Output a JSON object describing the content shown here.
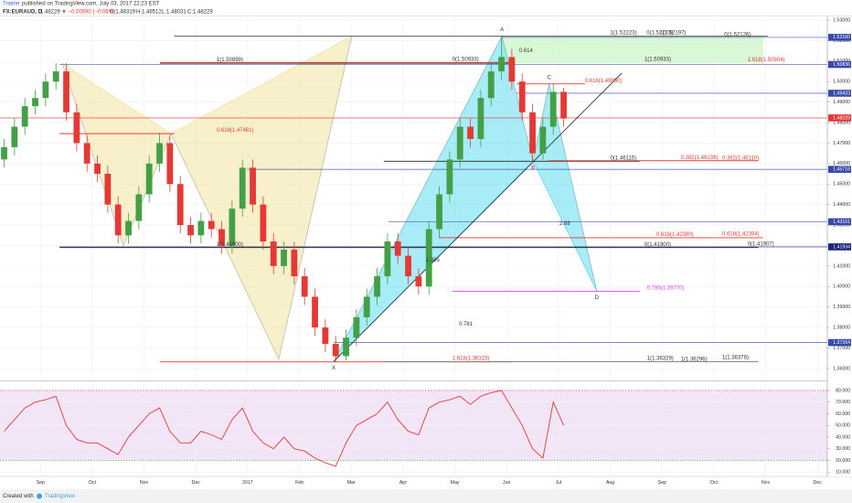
{
  "header": {
    "author": "Traime",
    "published": "published on TradingView.com, July 03, 2017 22:23 EST",
    "symbol": "FX:EURAUD, D",
    "last": "1.48229",
    "change": "▼ −0.00090 (−0.06%)",
    "open": "O:1.48319",
    "high": "H:1.48512",
    "low": "L:1.48031",
    "close": "C:1.48229"
  },
  "footer": {
    "created": "Created with",
    "brand": "TradingView"
  },
  "chart_data": [
    {
      "type": "candlestick",
      "x": [
        8.3,
        8.5,
        8.7,
        8.9,
        9.1,
        9.3,
        9.5,
        9.7,
        9.9,
        10.1,
        10.3,
        10.5,
        10.7,
        10.9,
        11.1,
        11.3,
        11.5,
        11.7,
        11.9,
        12.1,
        12.3,
        12.5,
        12.7,
        12.9,
        13.1,
        13.3,
        13.5,
        13.7,
        13.9,
        14.1,
        14.3,
        14.5,
        14.7,
        14.9,
        15.1,
        15.3,
        15.5,
        15.7,
        15.9,
        16.1,
        16.3,
        16.5,
        16.7,
        16.9,
        17.1,
        17.3,
        17.5,
        17.7,
        17.9,
        18.1,
        18.3,
        18.5,
        18.7,
        18.9,
        19.1
      ],
      "open": [
        1.462,
        1.468,
        1.478,
        1.488,
        1.492,
        1.5,
        1.505,
        1.485,
        1.47,
        1.46,
        1.455,
        1.44,
        1.425,
        1.432,
        1.445,
        1.46,
        1.47,
        1.45,
        1.43,
        1.425,
        1.432,
        1.428,
        1.42,
        1.438,
        1.458,
        1.44,
        1.422,
        1.41,
        1.418,
        1.405,
        1.395,
        1.38,
        1.372,
        1.366,
        1.375,
        1.385,
        1.395,
        1.405,
        1.422,
        1.415,
        1.405,
        1.4,
        1.428,
        1.445,
        1.462,
        1.478,
        1.472,
        1.492,
        1.505,
        1.512,
        1.5,
        1.485,
        1.465,
        1.478,
        1.495
      ],
      "high": [
        1.472,
        1.482,
        1.492,
        1.496,
        1.504,
        1.509,
        1.509,
        1.489,
        1.474,
        1.464,
        1.459,
        1.444,
        1.436,
        1.449,
        1.464,
        1.475,
        1.474,
        1.454,
        1.434,
        1.436,
        1.436,
        1.432,
        1.442,
        1.462,
        1.462,
        1.444,
        1.426,
        1.422,
        1.422,
        1.409,
        1.399,
        1.384,
        1.376,
        1.379,
        1.389,
        1.399,
        1.409,
        1.426,
        1.426,
        1.419,
        1.409,
        1.432,
        1.449,
        1.466,
        1.482,
        1.482,
        1.496,
        1.509,
        1.5222,
        1.516,
        1.504,
        1.489,
        1.482,
        1.4989,
        1.497
      ],
      "low": [
        1.458,
        1.464,
        1.474,
        1.484,
        1.488,
        1.496,
        1.481,
        1.466,
        1.456,
        1.451,
        1.436,
        1.421,
        1.421,
        1.428,
        1.441,
        1.456,
        1.446,
        1.426,
        1.421,
        1.421,
        1.424,
        1.416,
        1.416,
        1.434,
        1.436,
        1.418,
        1.406,
        1.406,
        1.401,
        1.391,
        1.376,
        1.368,
        1.3633,
        1.364,
        1.371,
        1.381,
        1.391,
        1.401,
        1.411,
        1.401,
        1.396,
        1.396,
        1.424,
        1.441,
        1.458,
        1.468,
        1.468,
        1.488,
        1.501,
        1.496,
        1.481,
        1.4612,
        1.462,
        1.474,
        1.478
      ],
      "close": [
        1.468,
        1.478,
        1.488,
        1.492,
        1.5,
        1.505,
        1.485,
        1.47,
        1.46,
        1.455,
        1.44,
        1.425,
        1.432,
        1.445,
        1.46,
        1.47,
        1.45,
        1.43,
        1.425,
        1.432,
        1.428,
        1.42,
        1.438,
        1.458,
        1.44,
        1.422,
        1.41,
        1.418,
        1.405,
        1.395,
        1.38,
        1.372,
        1.366,
        1.375,
        1.385,
        1.395,
        1.405,
        1.422,
        1.415,
        1.405,
        1.4,
        1.428,
        1.445,
        1.462,
        1.478,
        1.472,
        1.492,
        1.505,
        1.512,
        1.5,
        1.485,
        1.465,
        1.478,
        1.495,
        1.482
      ],
      "up_color": "#43a047",
      "down_color": "#e53935",
      "xlim": [
        8.22,
        24.19
      ],
      "ylim": [
        1.3546,
        1.5318
      ],
      "grid": true,
      "yticks": [
        {
          "value": 1.53,
          "label": "1.53000"
        },
        {
          "value": 1.52,
          "label": "1.52000"
        },
        {
          "value": 1.51,
          "label": "1.51000"
        },
        {
          "value": 1.5,
          "label": "1.50000"
        },
        {
          "value": 1.49,
          "label": "1.49000"
        },
        {
          "value": 1.48,
          "label": "1.48000"
        },
        {
          "value": 1.47,
          "label": "1.47000"
        },
        {
          "value": 1.46,
          "label": "1.46000"
        },
        {
          "value": 1.45,
          "label": "1.45000"
        },
        {
          "value": 1.44,
          "label": "1.44000"
        },
        {
          "value": 1.43,
          "label": "1.43000"
        },
        {
          "value": 1.42,
          "label": "1.42000"
        },
        {
          "value": 1.41,
          "label": "1.41000"
        },
        {
          "value": 1.4,
          "label": "1.40000"
        },
        {
          "value": 1.39,
          "label": "1.39000"
        },
        {
          "value": 1.38,
          "label": "1.38000"
        },
        {
          "value": 1.37,
          "label": "1.37000"
        },
        {
          "value": 1.36,
          "label": "1.36000"
        }
      ],
      "hlines": [
        {
          "value": 1.5216,
          "label": "1.52160",
          "from": 17.89,
          "color": "#3949ab"
        },
        {
          "value": 1.50836,
          "label": "1.50836",
          "from": 9.37,
          "color": "#3949ab"
        },
        {
          "value": 1.49433,
          "label": "1.49433",
          "from": 18.19,
          "color": "#3949ab"
        },
        {
          "value": 1.48229,
          "label": "1.48229",
          "from": 8.22,
          "color": "#e53935"
        },
        {
          "value": 1.45718,
          "label": "1.45718",
          "from": 12.99,
          "color": "#3949ab"
        },
        {
          "value": 1.43161,
          "label": "1.43161",
          "from": 15.72,
          "color": "#3949ab"
        },
        {
          "value": 1.41934,
          "label": "1.41934",
          "from": 9.37,
          "color": "#1a237e"
        },
        {
          "value": 1.37264,
          "label": "1.37264",
          "from": 14.66,
          "color": "#3949ab"
        }
      ],
      "fib_lines": [
        {
          "y": 1.52223,
          "x": [
            11.58,
            23.04
          ],
          "color": "#555555"
        },
        {
          "y": 1.50899,
          "x": [
            11.31,
            18.1
          ],
          "color": "#222222"
        },
        {
          "y": 1.50933,
          "x": [
            11.31,
            18.1
          ],
          "color": "#e53935"
        },
        {
          "y": 1.4989,
          "x": [
            18.19,
            19.51
          ],
          "color": "#e53935"
        },
        {
          "y": 1.47461,
          "x": [
            9.37,
            11.58
          ],
          "color": "#e53935"
        },
        {
          "y": 1.46115,
          "x": [
            15.63,
            20.57
          ],
          "color": "#222222"
        },
        {
          "y": 1.46139,
          "x": [
            18.81,
            22.86
          ],
          "color": "#e53935"
        },
        {
          "y": 1.4238,
          "x": [
            16.69,
            22.95
          ],
          "color": "#e53935"
        },
        {
          "y": 1.419,
          "x": [
            9.37,
            22.86
          ],
          "color": "#222222"
        },
        {
          "y": 1.3977,
          "x": [
            16.95,
            20.57
          ],
          "color": "#e040fb"
        },
        {
          "y": 1.36323,
          "x": [
            11.31,
            18.1
          ],
          "color": "#e53935"
        },
        {
          "y": 1.36329,
          "x": [
            15.63,
            22.86
          ],
          "color": "#777777"
        }
      ],
      "zones": [
        {
          "x": [
            17.89,
            22.95
          ],
          "y": [
            1.509,
            1.5222
          ],
          "color": "#c9f5c4"
        }
      ],
      "trendlines": [
        {
          "x": [
            14.66,
            20.22
          ],
          "y": [
            1.3633,
            1.5041
          ],
          "color": "#222222"
        }
      ],
      "patterns": [
        {
          "x": [
            9.42,
            10.6,
            11.52,
            13.6,
            15.01
          ],
          "y": [
            1.509,
            1.42,
            1.4746,
            1.3645,
            1.5222
          ],
          "color": "#f3e3a0"
        },
        {
          "x": [
            14.66,
            17.91,
            18.51,
            18.82,
            19.74
          ],
          "y": [
            1.3633,
            1.5222,
            1.4612,
            1.4989,
            1.3977
          ],
          "color": "#5fdcef",
          "labels": [
            "X",
            "A",
            "B",
            "C",
            "D"
          ]
        }
      ],
      "annotations": [
        {
          "text": "1(1.52223)",
          "x": 20.0,
          "y": 1.52223,
          "color": "#333333"
        },
        {
          "text": "0(1.52223)",
          "x": 20.7,
          "y": 1.52223,
          "color": "#333333"
        },
        {
          "text": "1(1.52197)",
          "x": 20.95,
          "y": 1.52223,
          "color": "#333333"
        },
        {
          "text": "0(1.52126)",
          "x": 22.2,
          "y": 1.52126,
          "color": "#333333"
        },
        {
          "text": "1(1.50899)",
          "x": 12.4,
          "y": 1.50899,
          "color": "#333333"
        },
        {
          "text": "0(1.50933)",
          "x": 16.95,
          "y": 1.50933,
          "color": "#333333"
        },
        {
          "text": "1(1.50933)",
          "x": 20.66,
          "y": 1.50933,
          "color": "#333333"
        },
        {
          "text": "1.618(1.50904)",
          "x": 22.65,
          "y": 1.50904,
          "color": "#e53935"
        },
        {
          "text": "0.614",
          "x": 18.24,
          "y": 1.5135,
          "color": "#333333"
        },
        {
          "text": "0.618(1.49890)",
          "x": 19.51,
          "y": 1.4989,
          "color": "#e53935"
        },
        {
          "text": "0.618(1.47461)",
          "x": 12.4,
          "y": 1.47461,
          "color": "#e53935"
        },
        {
          "text": "0(1.46115)",
          "x": 20.0,
          "y": 1.46115,
          "color": "#333333"
        },
        {
          "text": "0.382(1.46139)",
          "x": 21.36,
          "y": 1.46139,
          "color": "#e53935"
        },
        {
          "text": "0.382(1.46110)",
          "x": 22.16,
          "y": 1.4611,
          "color": "#e53935"
        },
        {
          "text": "2.68",
          "x": 19.02,
          "y": 1.4292,
          "color": "#333333"
        },
        {
          "text": "0.618(1.42380)",
          "x": 20.89,
          "y": 1.4238,
          "color": "#e53935"
        },
        {
          "text": "0.618(1.42394)",
          "x": 22.16,
          "y": 1.42394,
          "color": "#e53935"
        },
        {
          "text": "1(1.41900)",
          "x": 12.4,
          "y": 1.419,
          "color": "#333333"
        },
        {
          "text": "0(1.41900)",
          "x": 20.66,
          "y": 1.419,
          "color": "#333333"
        },
        {
          "text": "0(1.41907)",
          "x": 22.65,
          "y": 1.41907,
          "color": "#333333"
        },
        {
          "text": "1.385",
          "x": 16.44,
          "y": 1.4113,
          "color": "#333333"
        },
        {
          "text": "0.786(1.39770)",
          "x": 20.71,
          "y": 1.3977,
          "color": "#e040fb"
        },
        {
          "text": "0.781",
          "x": 17.08,
          "y": 1.3801,
          "color": "#333333"
        },
        {
          "text": "1.618(1.36323)",
          "x": 16.95,
          "y": 1.36323,
          "color": "#e53935"
        },
        {
          "text": "1(1.36329)",
          "x": 20.71,
          "y": 1.36329,
          "color": "#333333"
        },
        {
          "text": "1(1.36296)",
          "x": 21.36,
          "y": 1.36296,
          "color": "#333333"
        },
        {
          "text": "1(1.36378)",
          "x": 22.16,
          "y": 1.36378,
          "color": "#333333"
        }
      ]
    },
    {
      "type": "line",
      "x": [
        8.3,
        8.5,
        8.7,
        8.9,
        9.1,
        9.3,
        9.5,
        9.7,
        9.9,
        10.1,
        10.3,
        10.5,
        10.7,
        10.9,
        11.1,
        11.3,
        11.5,
        11.7,
        11.9,
        12.1,
        12.3,
        12.5,
        12.7,
        12.9,
        13.1,
        13.3,
        13.5,
        13.7,
        13.9,
        14.1,
        14.3,
        14.5,
        14.7,
        14.9,
        15.1,
        15.3,
        15.5,
        15.7,
        15.9,
        16.1,
        16.3,
        16.5,
        16.7,
        16.9,
        17.1,
        17.3,
        17.5,
        17.7,
        17.9,
        18.1,
        18.3,
        18.5,
        18.7,
        18.9,
        19.1
      ],
      "series": [
        {
          "color": "#e53935",
          "values": [
            45,
            55,
            65,
            70,
            72,
            75,
            50,
            38,
            35,
            35,
            30,
            25,
            40,
            50,
            60,
            65,
            45,
            35,
            35,
            45,
            42,
            38,
            55,
            65,
            45,
            35,
            30,
            40,
            30,
            28,
            22,
            18,
            15,
            35,
            50,
            55,
            60,
            70,
            55,
            45,
            42,
            65,
            70,
            72,
            75,
            68,
            75,
            78,
            80,
            65,
            50,
            30,
            22,
            70,
            50
          ]
        }
      ],
      "xlim": [
        8.22,
        24.19
      ],
      "ylim": [
        7,
        87
      ],
      "grid": true,
      "bands": {
        "upper": 80,
        "lower": 20,
        "color": "#f3e5f8"
      },
      "yticks": [
        {
          "value": 80,
          "label": "80.000"
        },
        {
          "value": 70,
          "label": "70.000"
        },
        {
          "value": 60,
          "label": "60.000"
        },
        {
          "value": 50,
          "label": "50.000"
        },
        {
          "value": 40,
          "label": "40.000"
        },
        {
          "value": 30,
          "label": "30.000"
        },
        {
          "value": 20,
          "label": "20.000"
        },
        {
          "value": 10,
          "label": "10.000"
        }
      ],
      "xticks": [
        {
          "value": 9,
          "label": "Sep"
        },
        {
          "value": 10,
          "label": "Oct"
        },
        {
          "value": 11,
          "label": "Nov"
        },
        {
          "value": 12,
          "label": "Dec"
        },
        {
          "value": 13,
          "label": "2017"
        },
        {
          "value": 14,
          "label": "Feb"
        },
        {
          "value": 15,
          "label": "Mar"
        },
        {
          "value": 16,
          "label": "Apr"
        },
        {
          "value": 17,
          "label": "May"
        },
        {
          "value": 18,
          "label": "Jun"
        },
        {
          "value": 19,
          "label": "Jul"
        },
        {
          "value": 20,
          "label": "Aug"
        },
        {
          "value": 21,
          "label": "Sep"
        },
        {
          "value": 22,
          "label": "Oct"
        },
        {
          "value": 23,
          "label": "Nov"
        },
        {
          "value": 24,
          "label": "Dec"
        }
      ]
    }
  ]
}
